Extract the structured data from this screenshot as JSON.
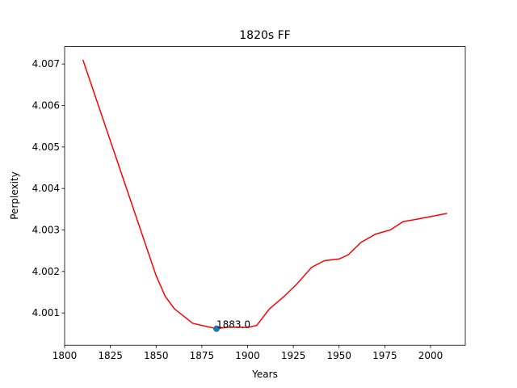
{
  "chart_data": {
    "type": "line",
    "title": "1820s FF",
    "xlabel": "Years",
    "ylabel": "Perplexity",
    "x": [
      1810,
      1820,
      1830,
      1840,
      1850,
      1855,
      1860,
      1870,
      1883,
      1890,
      1900,
      1905,
      1912,
      1920,
      1927,
      1935,
      1942,
      1950,
      1955,
      1962,
      1970,
      1978,
      1985,
      1995,
      2009
    ],
    "series": [
      {
        "color": "#ff0000",
        "values": [
          4.0071,
          4.0058,
          4.0045,
          4.0032,
          4.0019,
          4.0014,
          4.0011,
          4.00075,
          4.00062,
          4.00066,
          4.00065,
          4.0007,
          4.0011,
          4.0014,
          4.0017,
          4.0021,
          4.00226,
          4.0023,
          4.0024,
          4.0027,
          4.0029,
          4.003,
          4.0032,
          4.00328,
          4.0034
        ]
      }
    ],
    "annotations": [
      {
        "text": "1883.0",
        "x": 1883,
        "y": 4.00062,
        "color": "#1f77b4"
      }
    ],
    "xlim": [
      1800,
      2019
    ],
    "xticks": [
      1800,
      1825,
      1850,
      1875,
      1900,
      1925,
      1950,
      1975,
      2000
    ],
    "ylim": [
      4.00022,
      4.00742
    ],
    "yticks": [
      4.001,
      4.002,
      4.003,
      4.004,
      4.005,
      4.006,
      4.007
    ]
  }
}
